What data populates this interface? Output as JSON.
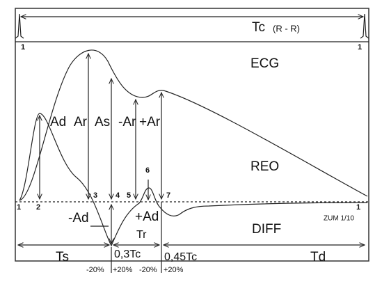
{
  "header": {
    "title": "Tc",
    "subtitle": "(R - R)"
  },
  "curves": {
    "ecg": "ECG",
    "reo": "REO",
    "diff": "DIFF"
  },
  "markers": {
    "r_left": "1",
    "r_right": "1",
    "start": "1",
    "point_2": "2",
    "point_3": "3",
    "point_4": "4",
    "point_5": "5",
    "point_6": "6",
    "point_7": "7",
    "end": "1"
  },
  "amplitudes": {
    "ad": "Ad",
    "ar": "Ar",
    "as": "As",
    "minus_ar": "-Ar",
    "plus_ar": "+Ar",
    "minus_ad": "-Ad",
    "plus_ad": "+Ad"
  },
  "intervals": {
    "ts": "Ts",
    "tr": "Tr",
    "td": "Td",
    "t03": "0,3Tc",
    "t045": "0,45Tc"
  },
  "tolerances": [
    "-20%",
    "+20%",
    "-20%",
    "+20%"
  ],
  "zoom": "ZUM 1/10"
}
